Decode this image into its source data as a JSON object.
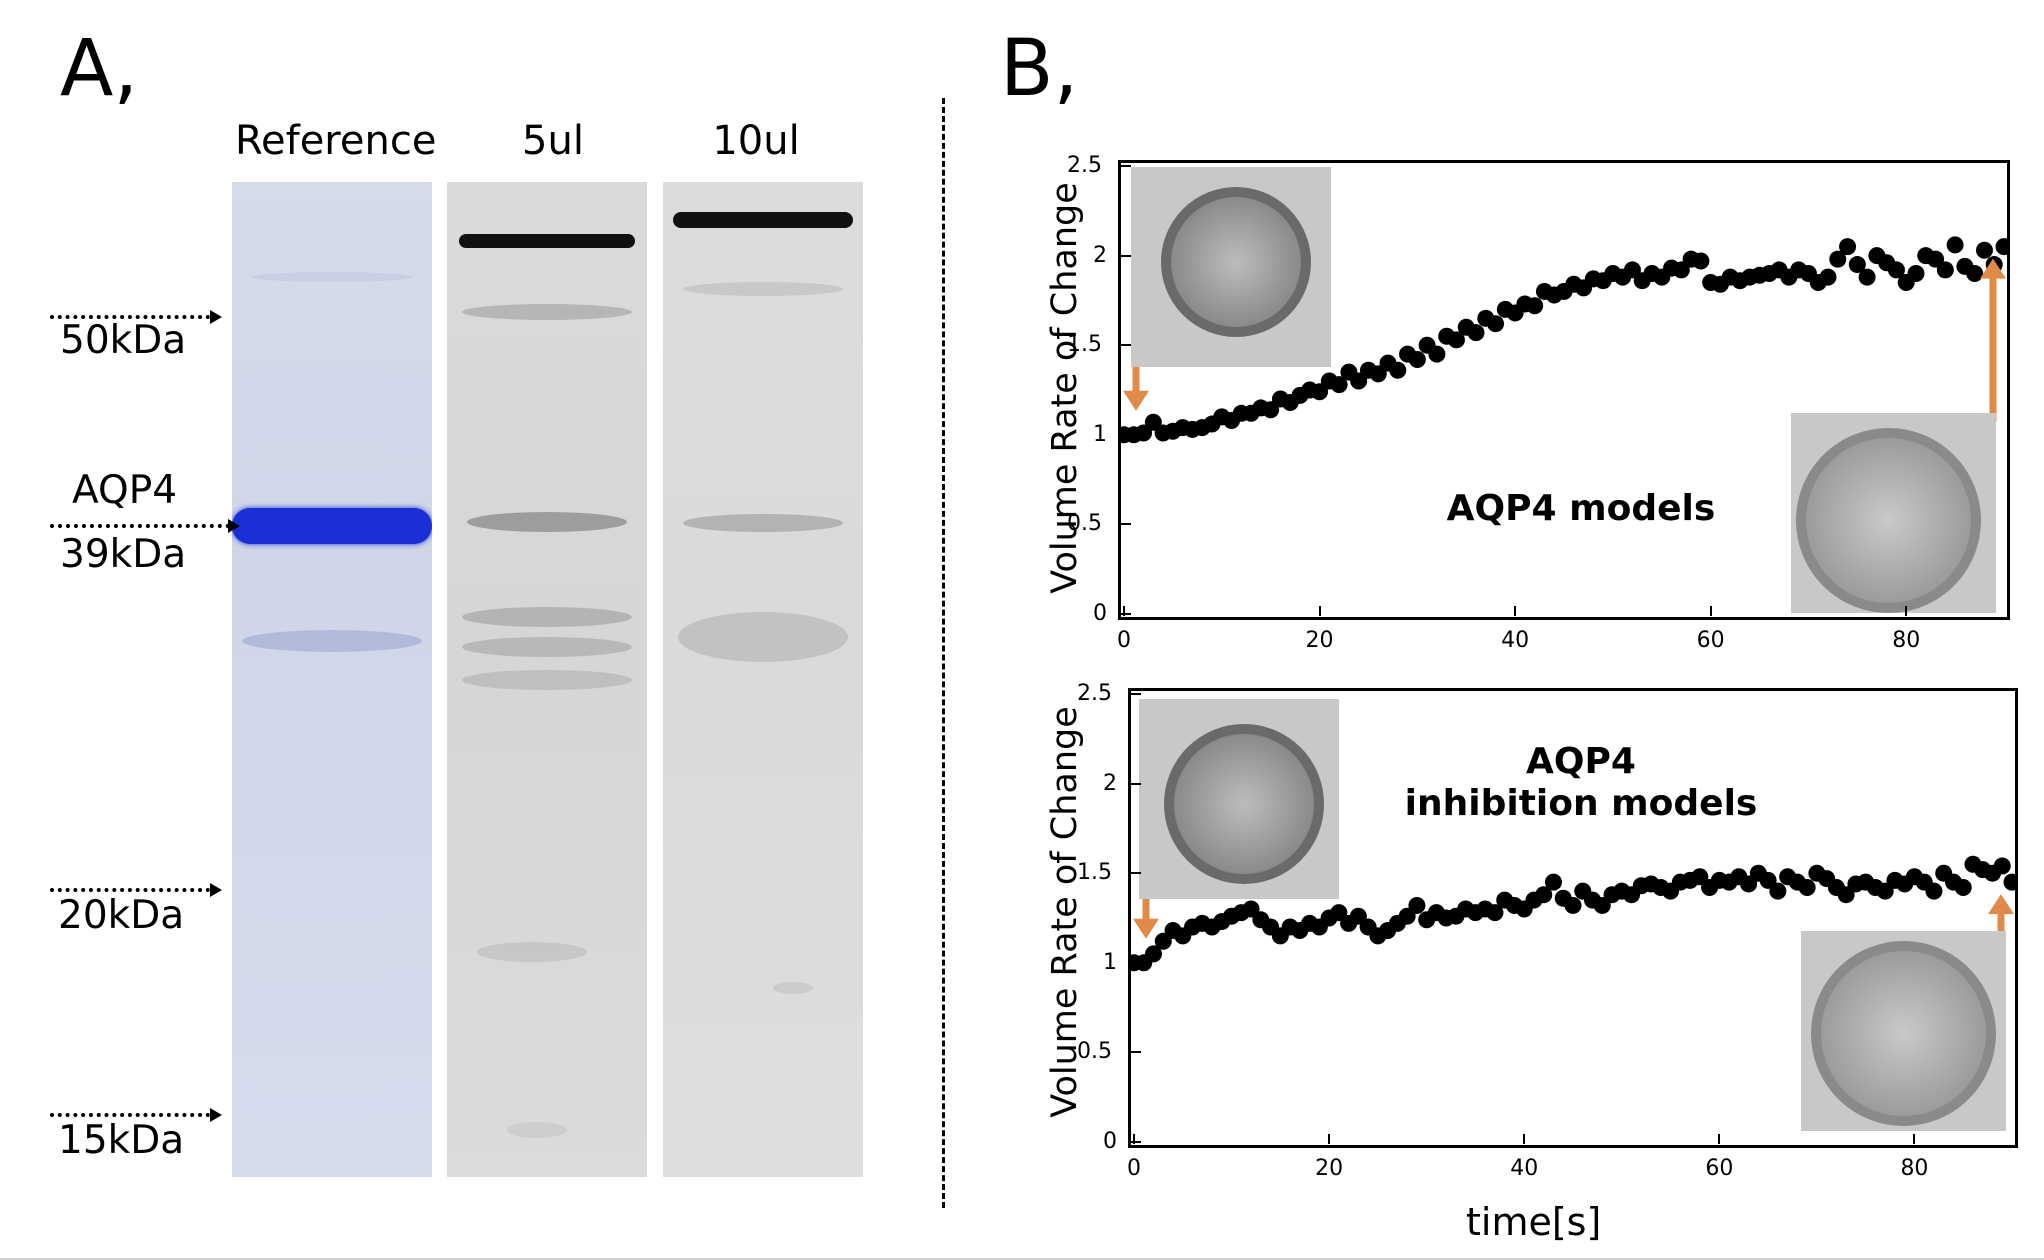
{
  "panel_a": {
    "label": "A,",
    "lanes": [
      "Reference",
      "5ul",
      "10ul"
    ],
    "markers": [
      {
        "name": "50kDa"
      },
      {
        "name": "AQP4",
        "sub": "39kDa"
      },
      {
        "name": "20kDa"
      },
      {
        "name": "15kDa"
      }
    ]
  },
  "panel_b": {
    "label": "B,",
    "separator": "dash-dot vertical line"
  },
  "chart_data": [
    {
      "type": "scatter",
      "title": "",
      "annotation": "AQP4 models",
      "xlabel": "",
      "ylabel": "Volume Rate of Change",
      "xlim": [
        0,
        90
      ],
      "ylim": [
        0,
        2.5
      ],
      "xticks": [
        "0",
        "20",
        "40",
        "60",
        "80"
      ],
      "yticks": [
        "0",
        "0.5",
        "1",
        "1.5",
        "2",
        "2.5"
      ],
      "series": [
        {
          "x": [
            0,
            1,
            2,
            3,
            4,
            5,
            6,
            7,
            8,
            9,
            10,
            11,
            12,
            13,
            14,
            15,
            16,
            17,
            18,
            19,
            20,
            21,
            22,
            23,
            24,
            25,
            26,
            27,
            28,
            29,
            30,
            31,
            32,
            33,
            34,
            35,
            36,
            37,
            38,
            39,
            40,
            41,
            42,
            43,
            44,
            45,
            46,
            47,
            48,
            49,
            50,
            51,
            52,
            53,
            54,
            55,
            56,
            57,
            58,
            59,
            60,
            61,
            62,
            63,
            64,
            65,
            66,
            67,
            68,
            69,
            70,
            71,
            72,
            73,
            74,
            75,
            76,
            77,
            78,
            79,
            80,
            81,
            82,
            83,
            84,
            85,
            86,
            87,
            88,
            89,
            90
          ],
          "values": [
            1.0,
            1.0,
            1.01,
            1.07,
            1.01,
            1.02,
            1.04,
            1.03,
            1.04,
            1.06,
            1.1,
            1.08,
            1.12,
            1.12,
            1.15,
            1.14,
            1.2,
            1.18,
            1.22,
            1.25,
            1.24,
            1.3,
            1.28,
            1.35,
            1.3,
            1.36,
            1.34,
            1.4,
            1.36,
            1.45,
            1.42,
            1.5,
            1.45,
            1.55,
            1.53,
            1.6,
            1.57,
            1.65,
            1.62,
            1.7,
            1.68,
            1.73,
            1.72,
            1.8,
            1.78,
            1.8,
            1.84,
            1.82,
            1.87,
            1.86,
            1.9,
            1.88,
            1.92,
            1.86,
            1.9,
            1.88,
            1.93,
            1.92,
            1.98,
            1.97,
            1.85,
            1.84,
            1.88,
            1.86,
            1.88,
            1.89,
            1.9,
            1.92,
            1.88,
            1.92,
            1.9,
            1.85,
            1.88,
            1.98,
            2.05,
            1.95,
            1.88,
            2.0,
            1.96,
            1.92,
            1.85,
            1.9,
            2.0,
            1.98,
            1.92,
            2.06,
            1.94,
            1.9,
            2.03,
            1.95,
            2.05
          ]
        }
      ],
      "insets": [
        "cell-before",
        "cell-after"
      ],
      "arrows": [
        "down-start",
        "up-end"
      ]
    },
    {
      "type": "scatter",
      "title": "",
      "annotation_line1": "AQP4",
      "annotation_line2": "inhibition models",
      "xlabel": "time[s]",
      "ylabel": "Volume Rate of Change",
      "xlim": [
        0,
        90
      ],
      "ylim": [
        0,
        2.5
      ],
      "xticks": [
        "0",
        "20",
        "40",
        "60",
        "80"
      ],
      "yticks": [
        "0",
        "0.5",
        "1",
        "1.5",
        "2",
        "2.5"
      ],
      "series": [
        {
          "x": [
            0,
            1,
            2,
            3,
            4,
            5,
            6,
            7,
            8,
            9,
            10,
            11,
            12,
            13,
            14,
            15,
            16,
            17,
            18,
            19,
            20,
            21,
            22,
            23,
            24,
            25,
            26,
            27,
            28,
            29,
            30,
            31,
            32,
            33,
            34,
            35,
            36,
            37,
            38,
            39,
            40,
            41,
            42,
            43,
            44,
            45,
            46,
            47,
            48,
            49,
            50,
            51,
            52,
            53,
            54,
            55,
            56,
            57,
            58,
            59,
            60,
            61,
            62,
            63,
            64,
            65,
            66,
            67,
            68,
            69,
            70,
            71,
            72,
            73,
            74,
            75,
            76,
            77,
            78,
            79,
            80,
            81,
            82,
            83,
            84,
            85,
            86,
            87,
            88,
            89,
            90
          ],
          "values": [
            1.0,
            1.0,
            1.05,
            1.12,
            1.18,
            1.15,
            1.2,
            1.22,
            1.2,
            1.23,
            1.26,
            1.28,
            1.3,
            1.24,
            1.2,
            1.15,
            1.2,
            1.18,
            1.22,
            1.2,
            1.25,
            1.28,
            1.22,
            1.26,
            1.2,
            1.15,
            1.18,
            1.22,
            1.26,
            1.32,
            1.24,
            1.28,
            1.25,
            1.26,
            1.3,
            1.28,
            1.3,
            1.28,
            1.35,
            1.32,
            1.3,
            1.35,
            1.38,
            1.45,
            1.36,
            1.32,
            1.4,
            1.35,
            1.32,
            1.38,
            1.4,
            1.38,
            1.43,
            1.44,
            1.42,
            1.4,
            1.45,
            1.46,
            1.48,
            1.42,
            1.46,
            1.45,
            1.48,
            1.44,
            1.5,
            1.46,
            1.4,
            1.48,
            1.45,
            1.42,
            1.5,
            1.47,
            1.42,
            1.38,
            1.44,
            1.45,
            1.42,
            1.4,
            1.46,
            1.44,
            1.48,
            1.45,
            1.4,
            1.5,
            1.45,
            1.42,
            1.55,
            1.52,
            1.5,
            1.54,
            1.45
          ]
        }
      ],
      "insets": [
        "cell-before",
        "cell-after"
      ],
      "arrows": [
        "down-start",
        "up-end"
      ]
    }
  ]
}
